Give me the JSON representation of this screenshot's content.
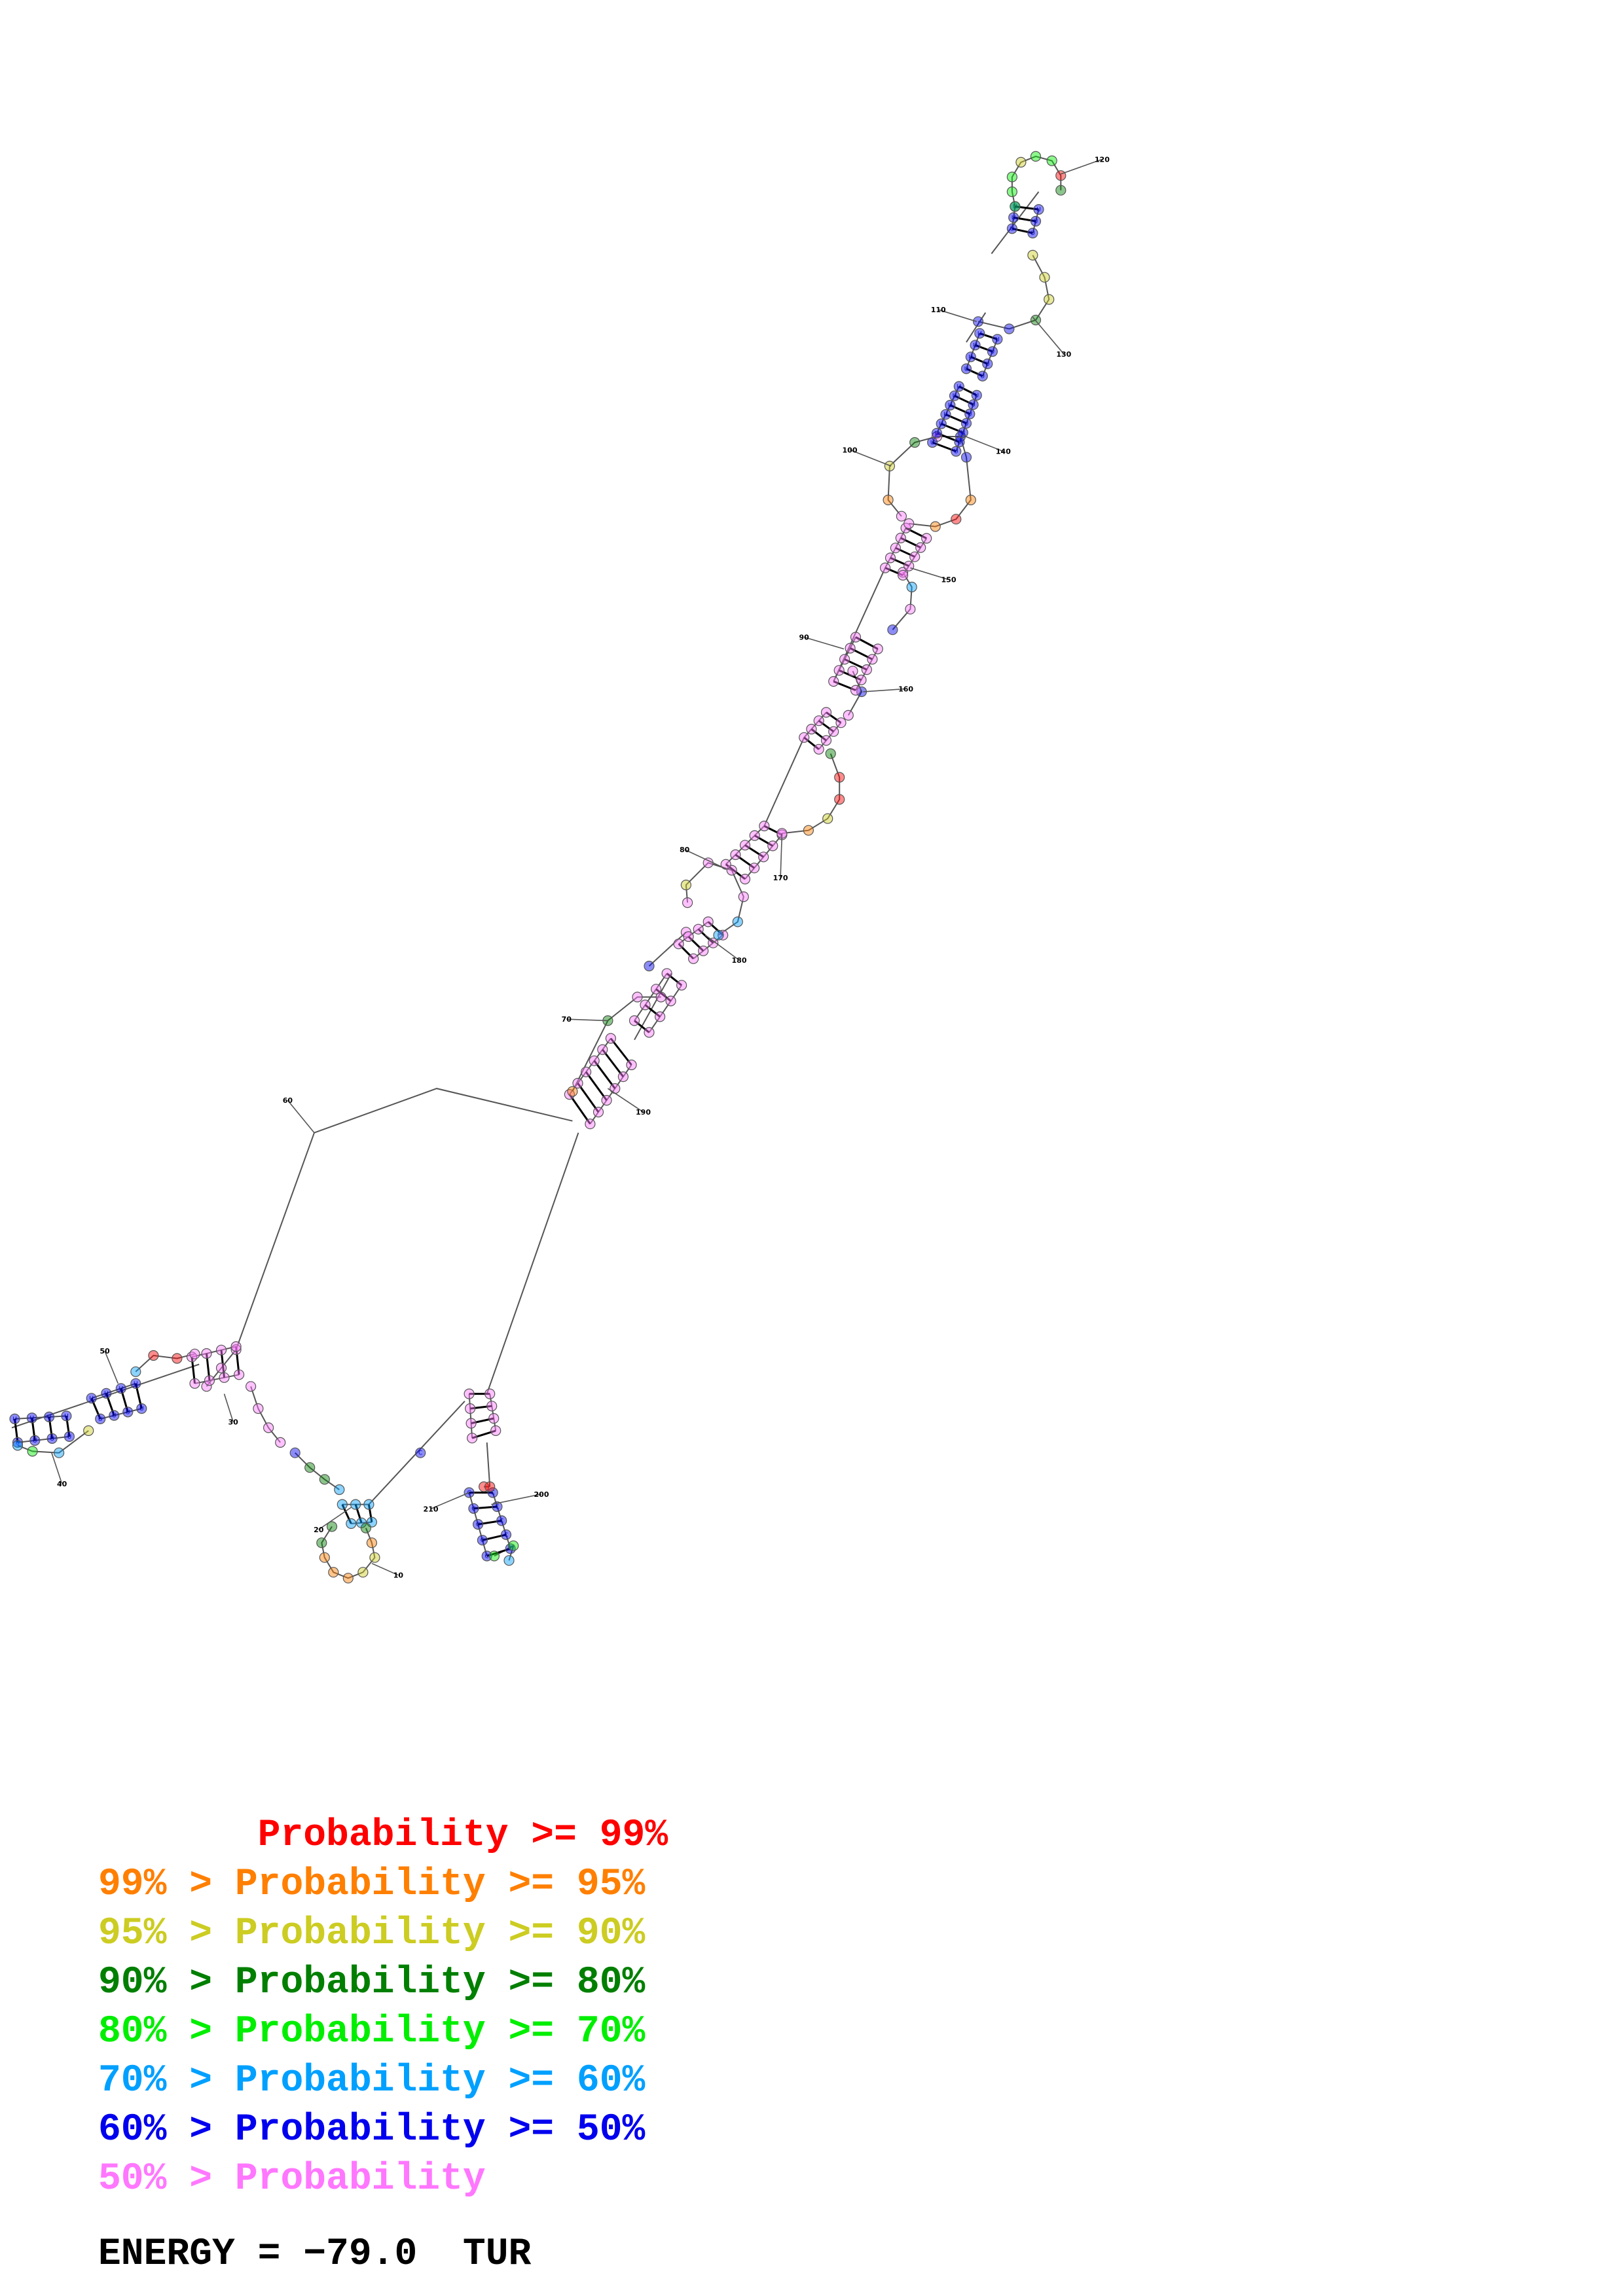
{
  "structure": {
    "energy_label": "ENERGY = −79.0  TUR",
    "position_labels": [
      "10",
      "20",
      "30",
      "40",
      "50",
      "60",
      "70",
      "80",
      "90",
      "100",
      "110",
      "120",
      "130",
      "140",
      "150",
      "160",
      "170",
      "180",
      "190",
      "200",
      "210"
    ]
  },
  "legend": [
    {
      "text": "       Probability >= 99%",
      "color": "#ff0000"
    },
    {
      "text": "99% > Probability >= 95%",
      "color": "#ff7f00"
    },
    {
      "text": "95% > Probability >= 90%",
      "color": "#cccc22"
    },
    {
      "text": "90% > Probability >= 80%",
      "color": "#007f00"
    },
    {
      "text": "80% > Probability >= 70%",
      "color": "#00ee00"
    },
    {
      "text": "70% > Probability >= 60%",
      "color": "#00a0ff"
    },
    {
      "text": "60% > Probability >= 50%",
      "color": "#0000ee"
    },
    {
      "text": "50% > Probability",
      "color": "#ff77ff"
    }
  ],
  "colors": {
    "p99": "#ff0000",
    "p95": "#ff7f00",
    "p90": "#cccc22",
    "p80": "#007f00",
    "p70": "#00ee00",
    "p60": "#00a0ff",
    "p50": "#0000ee",
    "low": "#ff77ff",
    "line": "#555555"
  }
}
